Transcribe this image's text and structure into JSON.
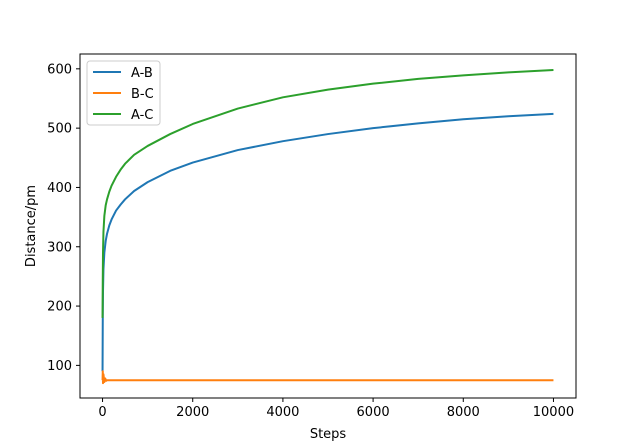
{
  "chart_data": {
    "type": "line",
    "title": "",
    "xlabel": "Steps",
    "ylabel": "Distance/pm",
    "xlim": [
      -500,
      10500
    ],
    "ylim": [
      45,
      625
    ],
    "xticks": [
      0,
      2000,
      4000,
      6000,
      8000,
      10000
    ],
    "yticks": [
      100,
      200,
      300,
      400,
      500,
      600
    ],
    "grid": false,
    "legend_position": "top-left",
    "series": [
      {
        "name": "A-B",
        "color": "#1f77b4",
        "x": [
          0,
          5,
          10,
          20,
          40,
          70,
          100,
          150,
          200,
          300,
          400,
          500,
          700,
          1000,
          1500,
          2000,
          3000,
          4000,
          5000,
          6000,
          7000,
          8000,
          9000,
          10000
        ],
        "y": [
          90,
          180,
          225,
          262,
          290,
          310,
          322,
          336,
          346,
          361,
          371,
          380,
          394,
          409,
          428,
          442,
          463,
          478,
          490,
          500,
          508,
          515,
          520,
          524
        ]
      },
      {
        "name": "B-C",
        "color": "#ff7f0e",
        "x": [
          0,
          5,
          10,
          20,
          40,
          60,
          80,
          100,
          1000,
          5000,
          10000
        ],
        "y": [
          75,
          90,
          70,
          85,
          72,
          78,
          74,
          75,
          75,
          75,
          75
        ]
      },
      {
        "name": "A-C",
        "color": "#2ca02c",
        "x": [
          0,
          5,
          10,
          20,
          40,
          70,
          100,
          150,
          200,
          300,
          400,
          500,
          700,
          1000,
          1500,
          2000,
          3000,
          4000,
          5000,
          6000,
          7000,
          8000,
          9000,
          10000
        ],
        "y": [
          180,
          245,
          290,
          325,
          352,
          370,
          380,
          393,
          403,
          418,
          430,
          440,
          455,
          470,
          490,
          507,
          533,
          552,
          565,
          575,
          583,
          589,
          594,
          598
        ]
      }
    ]
  }
}
